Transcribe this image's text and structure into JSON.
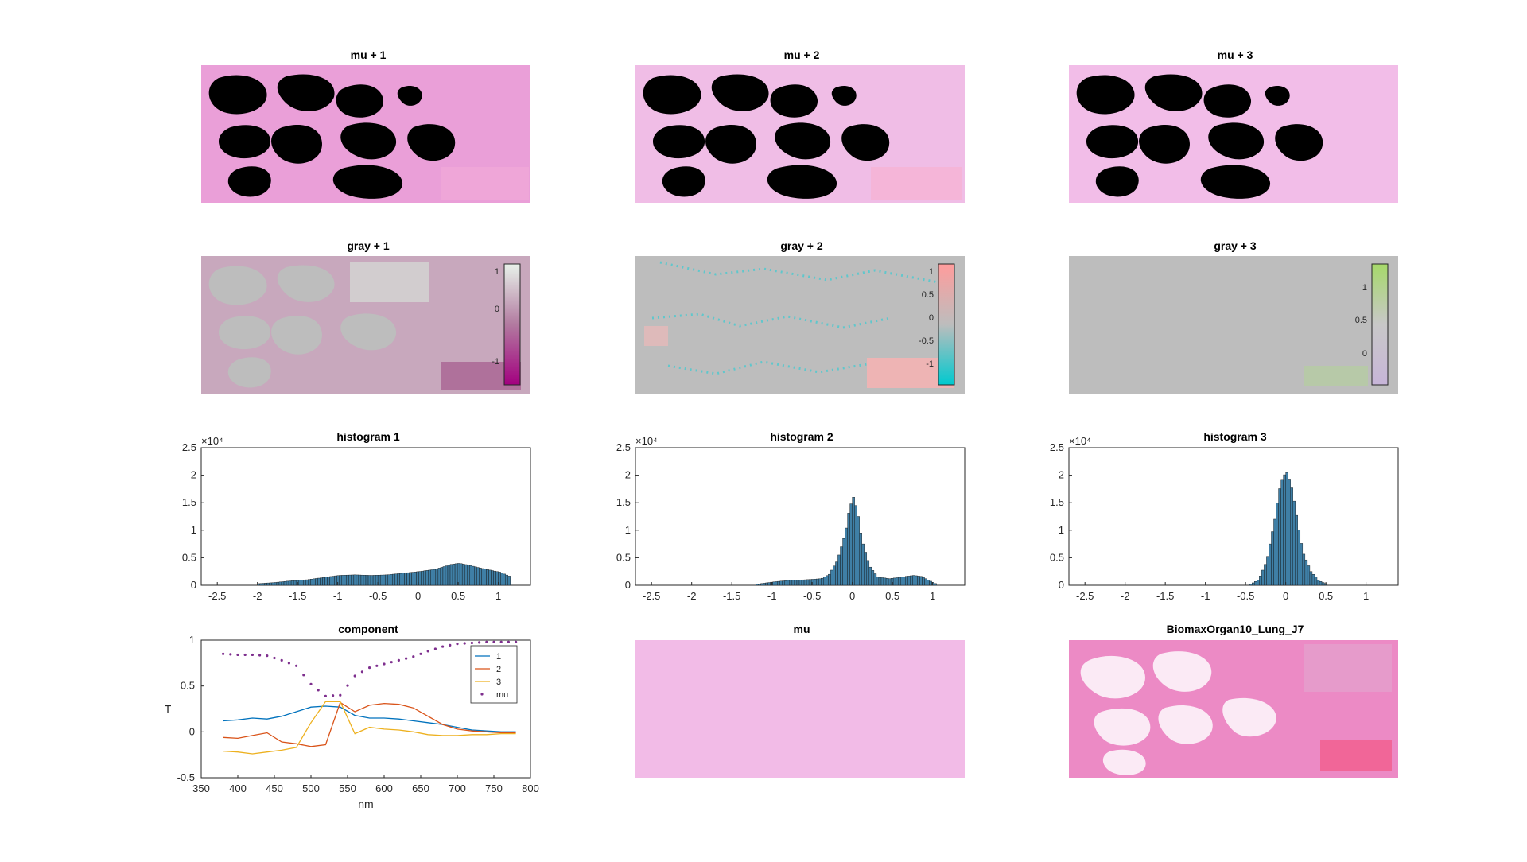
{
  "figure": {
    "panel_titles": {
      "mu1": "mu + 1",
      "mu2": "mu + 2",
      "mu3": "mu + 3",
      "gray1": "gray + 1",
      "gray2": "gray + 2",
      "gray3": "gray + 3",
      "hist1": "histogram 1",
      "hist2": "histogram 2",
      "hist3": "histogram 3",
      "comp": "component",
      "mu": "mu",
      "sample": "BiomaxOrgan10_Lung_J7"
    },
    "colorbars": {
      "gray1": {
        "ticks": [
          "1",
          "0",
          "-1"
        ],
        "colors": [
          "#e8f2ea",
          "#b27aa0",
          "#a3007f"
        ]
      },
      "gray2": {
        "ticks": [
          "1",
          "0.5",
          "0",
          "-0.5",
          "-1"
        ],
        "colors": [
          "#ff9c9c",
          "#bdbdbd",
          "#00c9cf"
        ]
      },
      "gray3": {
        "ticks": [
          "1",
          "0.5",
          "0"
        ],
        "colors": [
          "#a6d96a",
          "#c8c8c8",
          "#c7b5d8"
        ]
      }
    },
    "colors": {
      "mu_pink": "#f2bbe7",
      "tissue_bg": "#fbeaf5",
      "tissue_stroma": "#ea7fc0",
      "hist_bar": "#3f7fa6",
      "gray_bg": "#bdbdbd"
    },
    "histogram_multiplier": "×10⁴"
  },
  "chart_data": [
    {
      "type": "bar",
      "title": "histogram 1",
      "xlim": [
        -2.7,
        1.4
      ],
      "ylim": [
        0,
        2.5
      ],
      "y_multiplier": "×10⁴",
      "xticks": [
        "-2.5",
        "-2",
        "-1.5",
        "-1",
        "-0.5",
        "0",
        "0.5",
        "1"
      ],
      "yticks": [
        "0",
        "0.5",
        "1",
        "1.5",
        "2",
        "2.5"
      ],
      "x": [
        -2.0,
        -1.8,
        -1.6,
        -1.4,
        -1.2,
        -1.0,
        -0.8,
        -0.6,
        -0.4,
        -0.2,
        0.0,
        0.2,
        0.4,
        0.5,
        0.6,
        0.8,
        1.0,
        1.15
      ],
      "y": [
        0.03,
        0.05,
        0.08,
        0.1,
        0.14,
        0.18,
        0.19,
        0.18,
        0.19,
        0.22,
        0.25,
        0.29,
        0.38,
        0.4,
        0.37,
        0.3,
        0.24,
        0.15
      ]
    },
    {
      "type": "bar",
      "title": "histogram 2",
      "xlim": [
        -2.7,
        1.4
      ],
      "ylim": [
        0,
        2.5
      ],
      "y_multiplier": "×10⁴",
      "xticks": [
        "-2.5",
        "-2",
        "-1.5",
        "-1",
        "-0.5",
        "0",
        "0.5",
        "1"
      ],
      "yticks": [
        "0",
        "0.5",
        "1",
        "1.5",
        "2",
        "2.5"
      ],
      "x": [
        -1.2,
        -1.0,
        -0.8,
        -0.6,
        -0.4,
        -0.3,
        -0.2,
        -0.1,
        -0.05,
        0.0,
        0.05,
        0.1,
        0.2,
        0.3,
        0.45,
        0.6,
        0.75,
        0.85,
        0.95,
        1.05
      ],
      "y": [
        0.02,
        0.06,
        0.09,
        0.1,
        0.12,
        0.2,
        0.45,
        0.95,
        1.4,
        1.6,
        1.35,
        0.85,
        0.35,
        0.15,
        0.12,
        0.15,
        0.18,
        0.16,
        0.08,
        0.01
      ]
    },
    {
      "type": "bar",
      "title": "histogram 3",
      "xlim": [
        -2.7,
        1.4
      ],
      "ylim": [
        0,
        2.5
      ],
      "y_multiplier": "×10⁴",
      "xticks": [
        "-2.5",
        "-2",
        "-1.5",
        "-1",
        "-0.5",
        "0",
        "0.5",
        "1"
      ],
      "yticks": [
        "0",
        "0.5",
        "1",
        "1.5",
        "2",
        "2.5"
      ],
      "x": [
        -0.45,
        -0.35,
        -0.25,
        -0.15,
        -0.1,
        -0.05,
        0.0,
        0.05,
        0.1,
        0.15,
        0.2,
        0.3,
        0.4,
        0.5
      ],
      "y": [
        0.02,
        0.1,
        0.45,
        1.2,
        1.7,
        1.98,
        2.05,
        1.85,
        1.45,
        1.0,
        0.6,
        0.25,
        0.08,
        0.02
      ]
    },
    {
      "type": "line",
      "title": "component",
      "xlabel": "nm",
      "ylabel": "T",
      "xlim": [
        350,
        800
      ],
      "ylim": [
        -0.5,
        1
      ],
      "xticks": [
        "350",
        "400",
        "450",
        "500",
        "550",
        "600",
        "650",
        "700",
        "750",
        "800"
      ],
      "yticks": [
        "-0.5",
        "0",
        "0.5",
        "1"
      ],
      "legend_position": "top-right",
      "x": [
        380,
        400,
        420,
        440,
        460,
        480,
        500,
        520,
        540,
        560,
        580,
        600,
        620,
        640,
        660,
        680,
        700,
        720,
        740,
        760,
        780
      ],
      "series": [
        {
          "name": "1",
          "color": "#0072bd",
          "style": "line",
          "values": [
            0.12,
            0.13,
            0.15,
            0.14,
            0.17,
            0.22,
            0.27,
            0.28,
            0.27,
            0.18,
            0.15,
            0.15,
            0.14,
            0.12,
            0.1,
            0.08,
            0.05,
            0.02,
            0.01,
            0.0,
            0.0
          ]
        },
        {
          "name": "2",
          "color": "#d95319",
          "style": "line",
          "values": [
            -0.06,
            -0.07,
            -0.04,
            -0.01,
            -0.11,
            -0.13,
            -0.16,
            -0.14,
            0.32,
            0.22,
            0.29,
            0.31,
            0.3,
            0.26,
            0.17,
            0.08,
            0.03,
            0.01,
            0.0,
            -0.01,
            -0.01
          ]
        },
        {
          "name": "3",
          "color": "#edb120",
          "style": "line",
          "values": [
            -0.21,
            -0.22,
            -0.24,
            -0.22,
            -0.2,
            -0.17,
            0.1,
            0.33,
            0.33,
            -0.02,
            0.05,
            0.03,
            0.02,
            0.0,
            -0.03,
            -0.04,
            -0.04,
            -0.03,
            -0.03,
            -0.02,
            -0.02
          ]
        },
        {
          "name": "mu",
          "color": "#7e2f8e",
          "style": "dots",
          "values": [
            0.85,
            0.84,
            0.84,
            0.83,
            0.78,
            0.72,
            0.52,
            0.39,
            0.4,
            0.61,
            0.7,
            0.74,
            0.78,
            0.82,
            0.88,
            0.93,
            0.96,
            0.97,
            0.98,
            0.98,
            0.98
          ]
        }
      ]
    }
  ]
}
